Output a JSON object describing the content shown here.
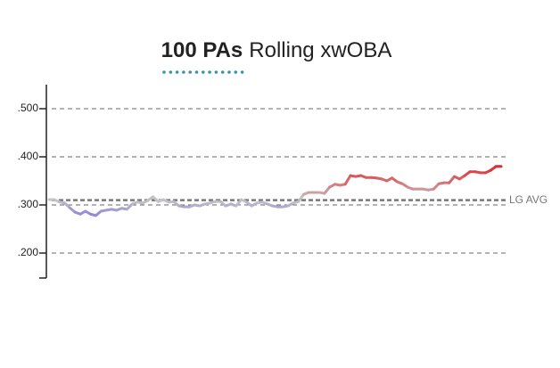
{
  "chart_data": {
    "type": "line",
    "title_highlight": "100 PAs",
    "title": "Rolling xwOBA",
    "values": [
      0.311,
      0.311,
      0.306,
      0.304,
      0.294,
      0.285,
      0.281,
      0.287,
      0.281,
      0.278,
      0.287,
      0.289,
      0.291,
      0.289,
      0.293,
      0.291,
      0.302,
      0.306,
      0.304,
      0.309,
      0.317,
      0.307,
      0.311,
      0.306,
      0.307,
      0.298,
      0.296,
      0.296,
      0.3,
      0.298,
      0.302,
      0.304,
      0.307,
      0.307,
      0.298,
      0.302,
      0.298,
      0.311,
      0.306,
      0.298,
      0.304,
      0.306,
      0.302,
      0.298,
      0.296,
      0.296,
      0.298,
      0.304,
      0.307,
      0.322,
      0.326,
      0.326,
      0.326,
      0.324,
      0.337,
      0.343,
      0.341,
      0.343,
      0.361,
      0.359,
      0.361,
      0.357,
      0.357,
      0.356,
      0.354,
      0.35,
      0.356,
      0.348,
      0.344,
      0.337,
      0.333,
      0.333,
      0.333,
      0.331,
      0.333,
      0.344,
      0.346,
      0.346,
      0.359,
      0.354,
      0.361,
      0.369,
      0.369,
      0.367,
      0.367,
      0.372,
      0.38,
      0.38
    ],
    "ylim": [
      0.15,
      0.55
    ],
    "yticks": [
      {
        "value": 0.2,
        "label": ".200"
      },
      {
        "value": 0.3,
        "label": ".300"
      },
      {
        "value": 0.4,
        "label": ".400"
      },
      {
        "value": 0.5,
        "label": ".500"
      }
    ],
    "grid": true,
    "reference": {
      "label": "LG AVG",
      "value": 0.31
    },
    "colors": {
      "below": "#8f88d8",
      "average": "#c6c6c6",
      "above": "#de2a30",
      "accent": "#3b93a5"
    }
  }
}
